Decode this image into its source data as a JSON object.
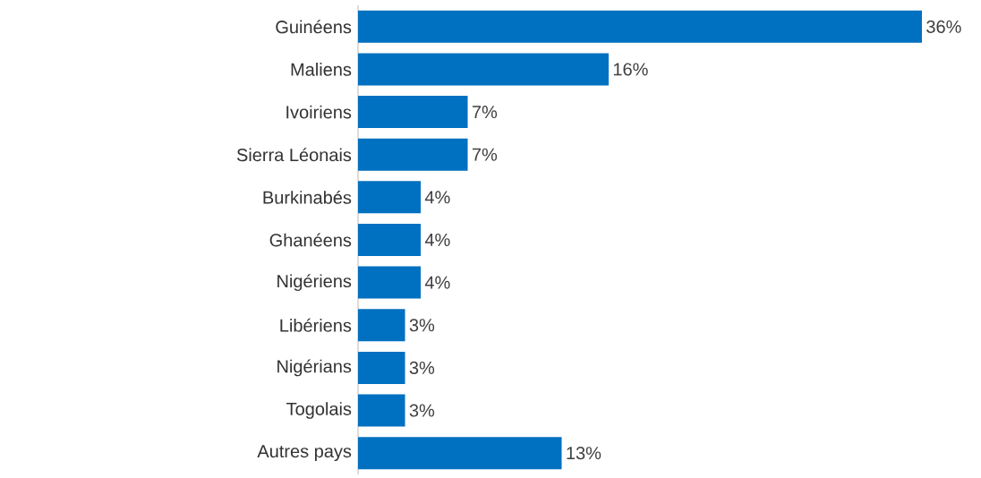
{
  "chart_data": {
    "type": "bar",
    "orientation": "horizontal",
    "categories": [
      "Guinéens",
      "Maliens",
      "Ivoiriens",
      "Sierra Léonais",
      "Burkinabés",
      "Ghanéens",
      "Nigériens",
      "Libériens",
      "Nigérians",
      "Togolais",
      "Autres pays"
    ],
    "values": [
      36,
      16,
      7,
      7,
      4,
      4,
      4,
      3,
      3,
      3,
      13
    ],
    "value_labels": [
      "36%",
      "16%",
      "7%",
      "7%",
      "4%",
      "4%",
      "4%",
      "3%",
      "3%",
      "3%",
      "13%"
    ],
    "color": "#0070c0"
  }
}
